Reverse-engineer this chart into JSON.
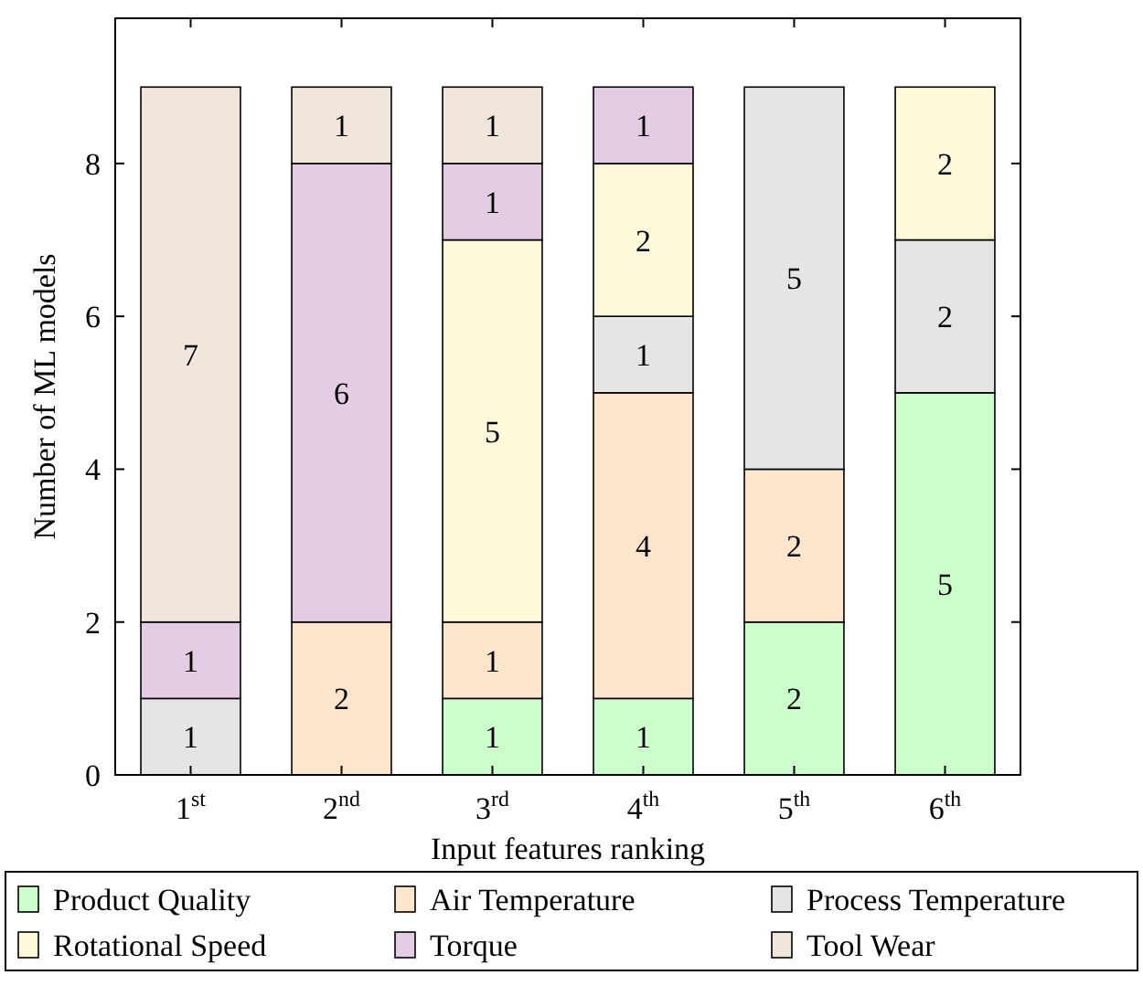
{
  "chart_data": {
    "type": "bar",
    "stacked": true,
    "xlabel": "Input features ranking",
    "ylabel": "Number of ML models",
    "categories": [
      "1$^{st}$",
      "2$^{nd}$",
      "3$^{rd}$",
      "4$^{th}$",
      "5$^{th}$",
      "6$^{th}$"
    ],
    "series": [
      {
        "name": "Product Quality",
        "color": "#ccffcc",
        "values": [
          null,
          null,
          1,
          1,
          2,
          5
        ]
      },
      {
        "name": "Air Temperature",
        "color": "#ffe5cc",
        "values": [
          null,
          2,
          1,
          4,
          2,
          null
        ]
      },
      {
        "name": "Process Temperature",
        "color": "#e5e5e5",
        "values": [
          1,
          null,
          null,
          1,
          5,
          2
        ]
      },
      {
        "name": "Rotational Speed",
        "color": "#fff9db",
        "values": [
          null,
          null,
          5,
          2,
          null,
          2
        ]
      },
      {
        "name": "Torque",
        "color": "#e5cce5",
        "values": [
          1,
          6,
          1,
          1,
          null,
          null
        ]
      },
      {
        "name": "Tool Wear",
        "color": "#f1e6da",
        "values": [
          7,
          1,
          1,
          null,
          null,
          null
        ]
      }
    ],
    "ylim": [
      0,
      9.9
    ],
    "yticks": [
      0,
      2,
      4,
      6,
      8
    ],
    "grid": false,
    "legend": "bottom",
    "data_labels": true
  }
}
